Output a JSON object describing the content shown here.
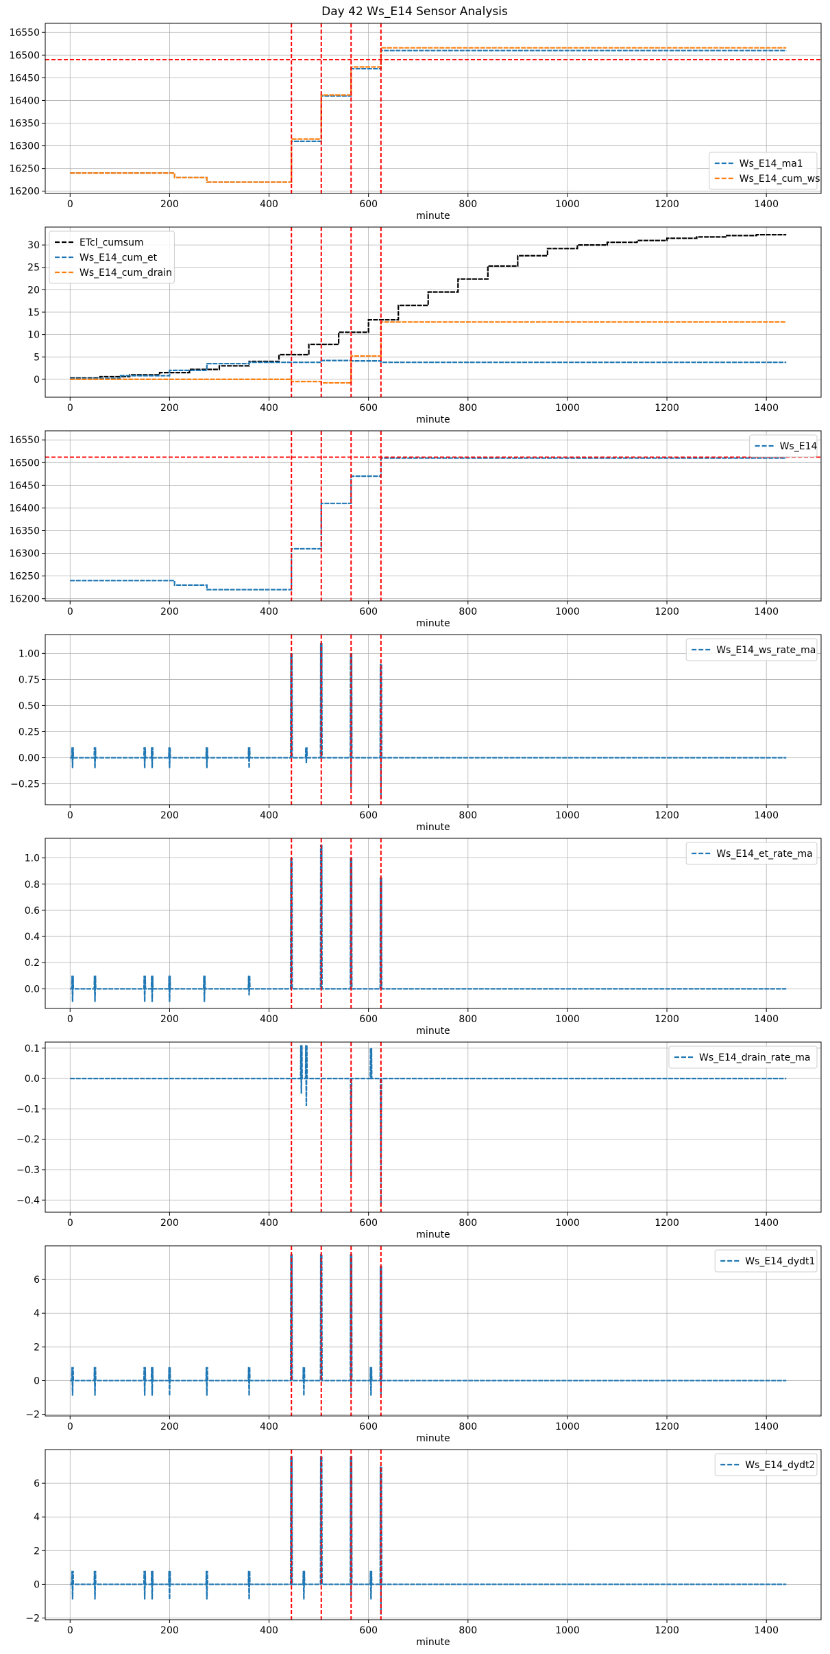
{
  "figure": {
    "title": "Day 42 Ws_E14 Sensor Analysis"
  },
  "chart_data": [
    {
      "type": "line",
      "xlabel": "minute",
      "xlim": [
        -50,
        1510
      ],
      "xticks": [
        0,
        200,
        400,
        600,
        800,
        1000,
        1200,
        1400
      ],
      "ylim": [
        16195,
        16570
      ],
      "yticks": [
        16200,
        16250,
        16300,
        16350,
        16400,
        16450,
        16500,
        16550
      ],
      "grid": true,
      "legend": "lower-right",
      "hline": 16490,
      "vlines": [
        445,
        505,
        565,
        625
      ],
      "series": [
        {
          "name": "Ws_E14_ma1",
          "color": "#1f77b4",
          "dashed": true,
          "steps": [
            [
              0,
              16240
            ],
            [
              210,
              16230
            ],
            [
              275,
              16220
            ],
            [
              445,
              16310
            ],
            [
              505,
              16410
            ],
            [
              565,
              16470
            ],
            [
              625,
              16510
            ],
            [
              1440,
              16510
            ]
          ]
        },
        {
          "name": "Ws_E14_cum_ws",
          "color": "#ff7f0e",
          "dashed": true,
          "steps": [
            [
              0,
              16240
            ],
            [
              210,
              16230
            ],
            [
              275,
              16220
            ],
            [
              445,
              16315
            ],
            [
              505,
              16412
            ],
            [
              565,
              16474
            ],
            [
              625,
              16516
            ],
            [
              1440,
              16516
            ]
          ]
        }
      ]
    },
    {
      "type": "line",
      "xlabel": "minute",
      "xlim": [
        -50,
        1510
      ],
      "xticks": [
        0,
        200,
        400,
        600,
        800,
        1000,
        1200,
        1400
      ],
      "ylim": [
        -4,
        34
      ],
      "yticks": [
        0,
        5,
        10,
        15,
        20,
        25,
        30
      ],
      "grid": true,
      "legend": "upper-left",
      "vlines": [
        445,
        505,
        565,
        625
      ],
      "series": [
        {
          "name": "ETcl_cumsum",
          "color": "#000000",
          "dashed": true,
          "steps": [
            [
              0,
              0.3
            ],
            [
              60,
              0.6
            ],
            [
              120,
              1.0
            ],
            [
              180,
              1.5
            ],
            [
              240,
              2.2
            ],
            [
              300,
              3.0
            ],
            [
              360,
              4.0
            ],
            [
              420,
              5.5
            ],
            [
              480,
              7.8
            ],
            [
              540,
              10.5
            ],
            [
              600,
              13.3
            ],
            [
              660,
              16.5
            ],
            [
              720,
              19.5
            ],
            [
              780,
              22.4
            ],
            [
              840,
              25.3
            ],
            [
              900,
              27.6
            ],
            [
              960,
              29.2
            ],
            [
              1020,
              30.0
            ],
            [
              1080,
              30.6
            ],
            [
              1140,
              31.0
            ],
            [
              1200,
              31.5
            ],
            [
              1260,
              31.8
            ],
            [
              1320,
              32.1
            ],
            [
              1380,
              32.3
            ],
            [
              1440,
              32.3
            ]
          ]
        },
        {
          "name": "Ws_E14_cum_et",
          "color": "#1f77b4",
          "dashed": true,
          "steps": [
            [
              0,
              0.2
            ],
            [
              100,
              0.8
            ],
            [
              200,
              2.0
            ],
            [
              275,
              3.5
            ],
            [
              360,
              3.8
            ],
            [
              445,
              3.8
            ],
            [
              505,
              4.2
            ],
            [
              565,
              4.1
            ],
            [
              625,
              3.8
            ],
            [
              1440,
              3.8
            ]
          ]
        },
        {
          "name": "Ws_E14_cum_drain",
          "color": "#ff7f0e",
          "dashed": true,
          "steps": [
            [
              0,
              0
            ],
            [
              445,
              -0.5
            ],
            [
              505,
              -0.8
            ],
            [
              565,
              5.2
            ],
            [
              625,
              12.8
            ],
            [
              1440,
              12.8
            ]
          ]
        }
      ]
    },
    {
      "type": "line",
      "xlabel": "minute",
      "xlim": [
        -50,
        1510
      ],
      "xticks": [
        0,
        200,
        400,
        600,
        800,
        1000,
        1200,
        1400
      ],
      "ylim": [
        16195,
        16570
      ],
      "yticks": [
        16200,
        16250,
        16300,
        16350,
        16400,
        16450,
        16500,
        16550
      ],
      "grid": true,
      "legend": "upper-right",
      "hline": 16512,
      "vlines": [
        445,
        505,
        565,
        625
      ],
      "series": [
        {
          "name": "Ws_E14",
          "color": "#1f77b4",
          "dashed": true,
          "steps": [
            [
              0,
              16240
            ],
            [
              210,
              16230
            ],
            [
              275,
              16220
            ],
            [
              445,
              16310
            ],
            [
              505,
              16410
            ],
            [
              565,
              16470
            ],
            [
              625,
              16510
            ],
            [
              1440,
              16510
            ]
          ]
        }
      ]
    },
    {
      "type": "line",
      "xlabel": "minute",
      "xlim": [
        -50,
        1510
      ],
      "xticks": [
        0,
        200,
        400,
        600,
        800,
        1000,
        1200,
        1400
      ],
      "ylim": [
        -0.45,
        1.18
      ],
      "yticks": [
        -0.25,
        0.0,
        0.25,
        0.5,
        0.75,
        1.0
      ],
      "grid": true,
      "legend": "upper-right",
      "vlines": [
        445,
        505,
        565,
        625
      ],
      "series": [
        {
          "name": "Ws_E14_ws_rate_ma",
          "color": "#1f77b4",
          "dashed": true,
          "baseline": 0,
          "spikes": [
            [
              5,
              -0.1,
              0.1
            ],
            [
              50,
              -0.1,
              0.1
            ],
            [
              150,
              -0.1,
              0.1
            ],
            [
              165,
              -0.1,
              0.1
            ],
            [
              200,
              -0.1,
              0.1
            ],
            [
              275,
              -0.1,
              0.1
            ],
            [
              360,
              -0.1,
              0.1
            ],
            [
              445,
              0,
              1.0
            ],
            [
              475,
              -0.05,
              0.1
            ],
            [
              505,
              0,
              1.1
            ],
            [
              565,
              -0.3,
              1.0
            ],
            [
              625,
              -0.4,
              0.9
            ]
          ]
        }
      ]
    },
    {
      "type": "line",
      "xlabel": "minute",
      "xlim": [
        -50,
        1510
      ],
      "xticks": [
        0,
        200,
        400,
        600,
        800,
        1000,
        1200,
        1400
      ],
      "ylim": [
        -0.15,
        1.15
      ],
      "yticks": [
        0.0,
        0.2,
        0.4,
        0.6,
        0.8,
        1.0
      ],
      "grid": true,
      "legend": "upper-right",
      "vlines": [
        445,
        505,
        565,
        625
      ],
      "series": [
        {
          "name": "Ws_E14_et_rate_ma",
          "color": "#1f77b4",
          "dashed": true,
          "baseline": 0,
          "spikes": [
            [
              5,
              -0.1,
              0.1
            ],
            [
              50,
              -0.1,
              0.1
            ],
            [
              150,
              -0.1,
              0.1
            ],
            [
              165,
              -0.1,
              0.1
            ],
            [
              200,
              -0.1,
              0.1
            ],
            [
              270,
              -0.1,
              0.1
            ],
            [
              360,
              -0.05,
              0.1
            ],
            [
              445,
              0,
              1.0
            ],
            [
              505,
              0,
              1.1
            ],
            [
              565,
              0,
              1.0
            ],
            [
              625,
              0,
              0.85
            ]
          ]
        }
      ]
    },
    {
      "type": "line",
      "xlabel": "minute",
      "xlim": [
        -50,
        1510
      ],
      "xticks": [
        0,
        200,
        400,
        600,
        800,
        1000,
        1200,
        1400
      ],
      "ylim": [
        -0.44,
        0.12
      ],
      "yticks": [
        -0.4,
        -0.3,
        -0.2,
        -0.1,
        0.0,
        0.1
      ],
      "grid": true,
      "legend": "upper-right",
      "vlines": [
        445,
        505,
        565,
        625
      ],
      "series": [
        {
          "name": "Ws_E14_drain_rate_ma",
          "color": "#1f77b4",
          "dashed": true,
          "baseline": 0,
          "spikes": [
            [
              465,
              -0.05,
              0.11
            ],
            [
              475,
              -0.09,
              0.11
            ],
            [
              565,
              -0.33,
              0
            ],
            [
              605,
              0,
              0.1
            ],
            [
              625,
              -0.42,
              0
            ]
          ]
        }
      ]
    },
    {
      "type": "line",
      "xlabel": "minute",
      "xlim": [
        -50,
        1510
      ],
      "xticks": [
        0,
        200,
        400,
        600,
        800,
        1000,
        1200,
        1400
      ],
      "ylim": [
        -2.1,
        8.0
      ],
      "yticks": [
        -2,
        0,
        2,
        4,
        6
      ],
      "grid": true,
      "legend": "upper-right",
      "vlines": [
        445,
        505,
        565,
        625
      ],
      "series": [
        {
          "name": "Ws_E14_dydt1",
          "color": "#1f77b4",
          "dashed": true,
          "baseline": 0,
          "spikes": [
            [
              5,
              -0.9,
              0.8
            ],
            [
              50,
              -0.9,
              0.8
            ],
            [
              150,
              -0.9,
              0.8
            ],
            [
              165,
              -0.9,
              0.8
            ],
            [
              200,
              -0.9,
              0.8
            ],
            [
              275,
              -0.9,
              0.8
            ],
            [
              360,
              -0.9,
              0.8
            ],
            [
              445,
              0,
              7.5
            ],
            [
              470,
              -0.9,
              0.8
            ],
            [
              505,
              0,
              7.5
            ],
            [
              565,
              -0.9,
              7.5
            ],
            [
              605,
              -0.9,
              0.8
            ],
            [
              625,
              -0.9,
              6.8
            ]
          ]
        }
      ]
    },
    {
      "type": "line",
      "xlabel": "minute",
      "xlim": [
        -50,
        1510
      ],
      "xticks": [
        0,
        200,
        400,
        600,
        800,
        1000,
        1200,
        1400
      ],
      "ylim": [
        -2.1,
        8.0
      ],
      "yticks": [
        -2,
        0,
        2,
        4,
        6
      ],
      "grid": true,
      "legend": "upper-right",
      "vlines": [
        445,
        505,
        565,
        625
      ],
      "series": [
        {
          "name": "Ws_E14_dydt2",
          "color": "#1f77b4",
          "dashed": true,
          "baseline": 0,
          "spikes": [
            [
              5,
              -0.9,
              0.8
            ],
            [
              50,
              -0.9,
              0.8
            ],
            [
              150,
              -0.9,
              0.8
            ],
            [
              165,
              -0.9,
              0.8
            ],
            [
              200,
              -0.9,
              0.8
            ],
            [
              275,
              -0.9,
              0.8
            ],
            [
              360,
              -0.9,
              0.8
            ],
            [
              445,
              0,
              7.6
            ],
            [
              470,
              -0.9,
              0.8
            ],
            [
              505,
              0,
              7.6
            ],
            [
              565,
              -0.9,
              7.6
            ],
            [
              605,
              -0.9,
              0.8
            ],
            [
              625,
              -1.8,
              7.0
            ]
          ]
        }
      ]
    }
  ]
}
